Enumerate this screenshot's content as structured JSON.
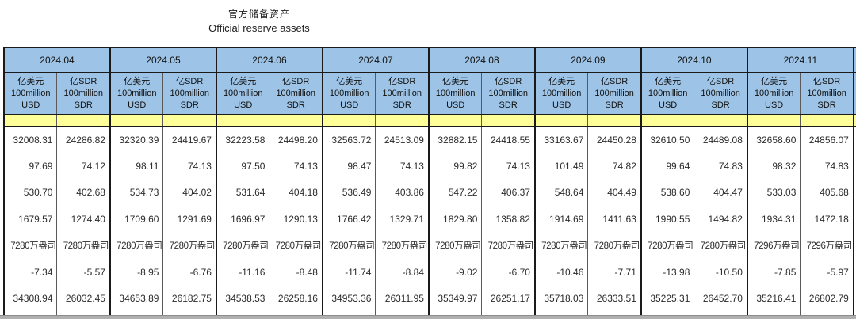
{
  "colors": {
    "header_blue": "#9DC3E6",
    "band_yellow": "#FFFF99",
    "border_dark": "#1a1a1a",
    "border_inner": "#595959",
    "bottom_strip_gray": "#b0b0b0"
  },
  "chart_data": {
    "type": "table",
    "title": "官方储备资产",
    "subtitle": "Official reserve assets",
    "column_groups": [
      "2024.04",
      "2024.05",
      "2024.06",
      "2024.07",
      "2024.08",
      "2024.09",
      "2024.10",
      "2024.11"
    ],
    "subcolumn_headers": {
      "usd": [
        "亿美元",
        "100million",
        "USD"
      ],
      "sdr": [
        "亿SDR",
        "100million",
        "SDR"
      ]
    },
    "rows": [
      [
        "32008.31",
        "24286.82",
        "32320.39",
        "24419.67",
        "32223.58",
        "24498.20",
        "32563.72",
        "24513.09",
        "32882.15",
        "24418.55",
        "33163.67",
        "24450.28",
        "32610.50",
        "24489.08",
        "32658.60",
        "24856.07"
      ],
      [
        "97.69",
        "74.12",
        "98.11",
        "74.13",
        "97.50",
        "74.13",
        "98.47",
        "74.13",
        "99.82",
        "74.13",
        "101.49",
        "74.82",
        "99.64",
        "74.83",
        "98.32",
        "74.83"
      ],
      [
        "530.70",
        "402.68",
        "534.73",
        "404.02",
        "531.64",
        "404.18",
        "536.49",
        "403.86",
        "547.22",
        "406.37",
        "548.64",
        "404.49",
        "538.60",
        "404.47",
        "533.03",
        "405.68"
      ],
      [
        "1679.57",
        "1274.40",
        "1709.60",
        "1291.69",
        "1696.97",
        "1290.13",
        "1766.42",
        "1329.71",
        "1829.80",
        "1358.82",
        "1914.69",
        "1411.63",
        "1990.55",
        "1494.82",
        "1934.31",
        "1472.18"
      ],
      [
        "7280万盎司",
        "7280万盎司",
        "7280万盎司",
        "7280万盎司",
        "7280万盎司",
        "7280万盎司",
        "7280万盎司",
        "7280万盎司",
        "7280万盎司",
        "7280万盎司",
        "7280万盎司",
        "7280万盎司",
        "7280万盎司",
        "7280万盎司",
        "7296万盎司",
        "7296万盎司"
      ],
      [
        "-7.34",
        "-5.57",
        "-8.95",
        "-6.76",
        "-11.16",
        "-8.48",
        "-11.74",
        "-8.84",
        "-9.02",
        "-6.70",
        "-10.46",
        "-7.71",
        "-13.98",
        "-10.50",
        "-7.85",
        "-5.97"
      ],
      [
        "34308.94",
        "26032.45",
        "34653.89",
        "26182.75",
        "34538.53",
        "26258.16",
        "34953.36",
        "26311.95",
        "35349.97",
        "26251.17",
        "35718.03",
        "26333.51",
        "35225.31",
        "26452.70",
        "35216.41",
        "26802.79"
      ]
    ],
    "layout": {
      "legend_position": "none",
      "grid": "vertical-borders-only-in-data-area",
      "note_row_labels": "row label column cropped out of left edge of view"
    }
  }
}
